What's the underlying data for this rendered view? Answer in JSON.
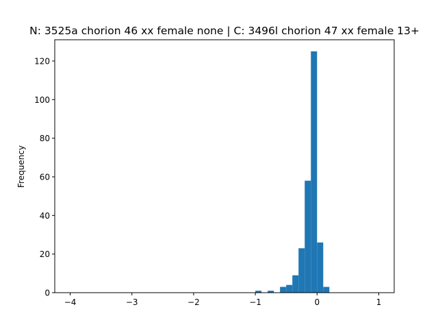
{
  "chart_data": {
    "type": "histogram",
    "title": "N: 3525a chorion 46 xx female none | C: 3496l chorion 47 xx female 13+",
    "xlabel": "",
    "ylabel": "Frequency",
    "xlim": [
      -4.25,
      1.25
    ],
    "ylim": [
      0,
      131
    ],
    "xticks": [
      -4,
      -3,
      -2,
      -1,
      0,
      1
    ],
    "xtick_labels": [
      "−4",
      "−3",
      "−2",
      "−1",
      "0",
      "1"
    ],
    "yticks": [
      0,
      20,
      40,
      60,
      80,
      100,
      120
    ],
    "ytick_labels": [
      "0",
      "20",
      "40",
      "60",
      "80",
      "100",
      "120"
    ],
    "bin_width": 0.1,
    "bins": [
      {
        "x0": -1.0,
        "x1": -0.9,
        "count": 1
      },
      {
        "x0": -0.8,
        "x1": -0.7,
        "count": 1
      },
      {
        "x0": -0.6,
        "x1": -0.5,
        "count": 3
      },
      {
        "x0": -0.5,
        "x1": -0.4,
        "count": 4
      },
      {
        "x0": -0.4,
        "x1": -0.3,
        "count": 9
      },
      {
        "x0": -0.3,
        "x1": -0.2,
        "count": 23
      },
      {
        "x0": -0.2,
        "x1": -0.1,
        "count": 58
      },
      {
        "x0": -0.1,
        "x1": 0.0,
        "count": 125
      },
      {
        "x0": 0.0,
        "x1": 0.1,
        "count": 26
      },
      {
        "x0": 0.1,
        "x1": 0.2,
        "count": 3
      }
    ],
    "bar_color": "#1f77b4",
    "grid": false,
    "legend": "none"
  }
}
